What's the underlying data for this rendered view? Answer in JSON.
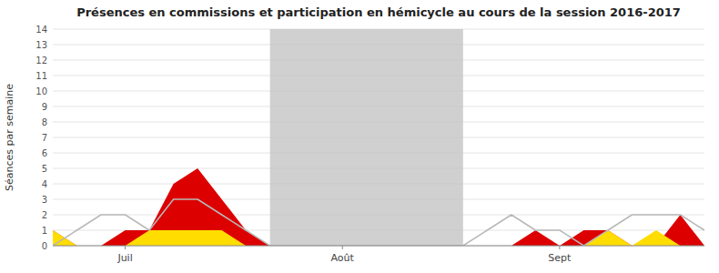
{
  "chart_data": {
    "type": "area",
    "title": "Présences en commissions et participation en hémicycle au cours de la session 2016-2017",
    "y_label": "Séances par semaine",
    "x": [
      0,
      1,
      2,
      3,
      4,
      5,
      6,
      7,
      8,
      9,
      10,
      11,
      12,
      13,
      14,
      15,
      16,
      17,
      18,
      19,
      20,
      21,
      22,
      23,
      24,
      25,
      26,
      27
    ],
    "xlim": [
      0,
      27
    ],
    "xticks": [
      {
        "value": 3,
        "label": "Juil"
      },
      {
        "value": 12,
        "label": "Août"
      },
      {
        "value": 21,
        "label": "Sept"
      }
    ],
    "ylim": [
      0,
      14
    ],
    "yticks": [
      0,
      1,
      2,
      3,
      4,
      5,
      6,
      7,
      8,
      9,
      10,
      11,
      12,
      13,
      14
    ],
    "grid": true,
    "highlight": {
      "start": 9,
      "end": 17,
      "color": "#c0c0c0"
    },
    "series": [
      {
        "type": "area",
        "color": "#dd0000",
        "values": [
          1,
          0,
          0,
          1,
          1,
          4,
          5,
          3,
          1,
          0,
          0,
          0,
          0,
          0,
          0,
          0,
          0,
          0,
          0,
          0,
          1,
          0,
          1,
          1,
          0,
          0,
          2,
          0
        ]
      },
      {
        "type": "area",
        "color": "#ffdd00",
        "values": [
          1,
          0,
          0,
          0,
          1,
          1,
          1,
          1,
          0,
          0,
          0,
          0,
          0,
          0,
          0,
          0,
          0,
          0,
          0,
          0,
          0,
          0,
          0,
          1,
          0,
          1,
          0,
          0
        ]
      },
      {
        "type": "line",
        "color": "#b8b8b8",
        "values": [
          0,
          1,
          2,
          2,
          1,
          3,
          3,
          2,
          1,
          0,
          0,
          0,
          0,
          0,
          0,
          0,
          0,
          0,
          1,
          2,
          1,
          1,
          0,
          1,
          2,
          2,
          2,
          1
        ]
      }
    ]
  }
}
